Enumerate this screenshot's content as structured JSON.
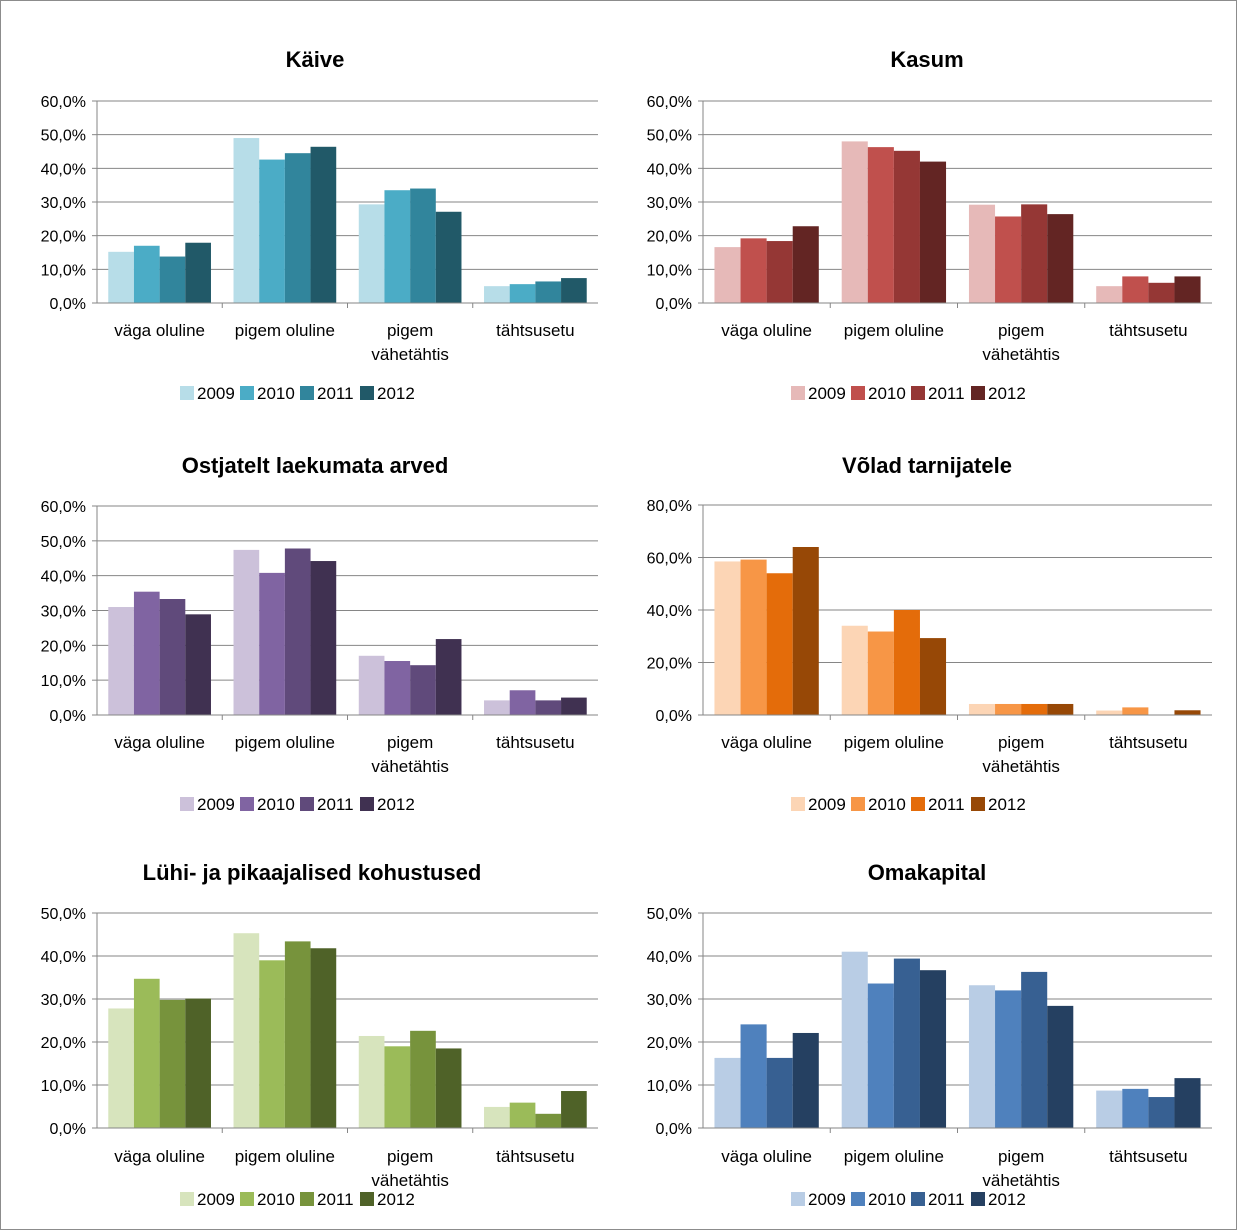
{
  "chart_data": [
    {
      "type": "bar",
      "title": "Käive",
      "categories": [
        [
          "väga oluline"
        ],
        [
          "pigem oluline"
        ],
        [
          "pigem",
          "vähetähtis"
        ],
        [
          "tähtsusetu"
        ]
      ],
      "ylim": [
        0,
        60
      ],
      "yticks": [
        "0,0%",
        "10,0%",
        "20,0%",
        "30,0%",
        "40,0%",
        "50,0%",
        "60,0%"
      ],
      "grid": true,
      "legend": "bottom",
      "series": [
        {
          "name": "2009",
          "color": "#b7dde8",
          "values": [
            15.2,
            49.0,
            29.3,
            5.0
          ]
        },
        {
          "name": "2010",
          "color": "#4bacc6",
          "values": [
            17.0,
            42.6,
            33.5,
            5.6
          ]
        },
        {
          "name": "2011",
          "color": "#31859c",
          "values": [
            13.8,
            44.5,
            34.0,
            6.4
          ]
        },
        {
          "name": "2012",
          "color": "#215968",
          "values": [
            17.9,
            46.4,
            27.1,
            7.4
          ]
        }
      ]
    },
    {
      "type": "bar",
      "title": "Kasum",
      "categories": [
        [
          "väga oluline"
        ],
        [
          "pigem oluline"
        ],
        [
          "pigem",
          "vähetähtis"
        ],
        [
          "tähtsusetu"
        ]
      ],
      "ylim": [
        0,
        60
      ],
      "yticks": [
        "0,0%",
        "10,0%",
        "20,0%",
        "30,0%",
        "40,0%",
        "50,0%",
        "60,0%"
      ],
      "grid": true,
      "legend": "bottom",
      "series": [
        {
          "name": "2009",
          "color": "#e6b9b8",
          "values": [
            16.6,
            48.0,
            29.2,
            5.0
          ]
        },
        {
          "name": "2010",
          "color": "#c0504d",
          "values": [
            19.2,
            46.3,
            25.7,
            7.9
          ]
        },
        {
          "name": "2011",
          "color": "#953735",
          "values": [
            18.4,
            45.2,
            29.3,
            6.0
          ]
        },
        {
          "name": "2012",
          "color": "#632523",
          "values": [
            22.8,
            42.0,
            26.4,
            7.9
          ]
        }
      ]
    },
    {
      "type": "bar",
      "title": "Ostjatelt laekumata arved",
      "categories": [
        [
          "väga oluline"
        ],
        [
          "pigem oluline"
        ],
        [
          "pigem",
          "vähetähtis"
        ],
        [
          "tähtsusetu"
        ]
      ],
      "ylim": [
        0,
        60
      ],
      "yticks": [
        "0,0%",
        "10,0%",
        "20,0%",
        "30,0%",
        "40,0%",
        "50,0%",
        "60,0%"
      ],
      "grid": true,
      "legend": "bottom",
      "series": [
        {
          "name": "2009",
          "color": "#ccc1da",
          "values": [
            31.0,
            47.4,
            17.0,
            4.2
          ]
        },
        {
          "name": "2010",
          "color": "#8064a2",
          "values": [
            35.4,
            40.8,
            15.5,
            7.1
          ]
        },
        {
          "name": "2011",
          "color": "#604a7b",
          "values": [
            33.3,
            47.8,
            14.3,
            4.2
          ]
        },
        {
          "name": "2012",
          "color": "#403151",
          "values": [
            28.9,
            44.2,
            21.8,
            5.0
          ]
        }
      ]
    },
    {
      "type": "bar",
      "title": "Võlad tarnijatele",
      "categories": [
        [
          "väga oluline"
        ],
        [
          "pigem oluline"
        ],
        [
          "pigem",
          "vähetähtis"
        ],
        [
          "tähtsusetu"
        ]
      ],
      "ylim": [
        0,
        80
      ],
      "yticks": [
        "0,0%",
        "20,0%",
        "40,0%",
        "60,0%",
        "80,0%"
      ],
      "grid": true,
      "legend": "bottom",
      "series": [
        {
          "name": "2009",
          "color": "#fcd5b5",
          "values": [
            58.5,
            34.0,
            4.2,
            1.7
          ]
        },
        {
          "name": "2010",
          "color": "#f79646",
          "values": [
            59.2,
            31.8,
            4.2,
            2.9
          ]
        },
        {
          "name": "2011",
          "color": "#e46c0a",
          "values": [
            54.0,
            40.0,
            4.2,
            0
          ]
        },
        {
          "name": "2012",
          "color": "#974806",
          "values": [
            64.0,
            29.3,
            4.2,
            1.8
          ]
        }
      ]
    },
    {
      "type": "bar",
      "title": "Lühi- ja pikaajalised kohustused",
      "categories": [
        [
          "väga oluline"
        ],
        [
          "pigem oluline"
        ],
        [
          "pigem",
          "vähetähtis"
        ],
        [
          "tähtsusetu"
        ]
      ],
      "ylim": [
        0,
        50
      ],
      "yticks": [
        "0,0%",
        "10,0%",
        "20,0%",
        "30,0%",
        "40,0%",
        "50,0%"
      ],
      "grid": true,
      "legend": "bottom",
      "series": [
        {
          "name": "2009",
          "color": "#d7e4bd",
          "values": [
            27.8,
            45.3,
            21.4,
            4.9
          ]
        },
        {
          "name": "2010",
          "color": "#9bbb59",
          "values": [
            34.7,
            39.0,
            19.0,
            5.9
          ]
        },
        {
          "name": "2011",
          "color": "#77933c",
          "values": [
            29.8,
            43.4,
            22.6,
            3.3
          ]
        },
        {
          "name": "2012",
          "color": "#4f6228",
          "values": [
            30.1,
            41.8,
            18.5,
            8.6
          ]
        }
      ]
    },
    {
      "type": "bar",
      "title": "Omakapital",
      "categories": [
        [
          "väga oluline"
        ],
        [
          "pigem oluline"
        ],
        [
          "pigem",
          "vähetähtis"
        ],
        [
          "tähtsusetu"
        ]
      ],
      "ylim": [
        0,
        50
      ],
      "yticks": [
        "0,0%",
        "10,0%",
        "20,0%",
        "30,0%",
        "40,0%",
        "50,0%"
      ],
      "grid": true,
      "legend": "bottom",
      "series": [
        {
          "name": "2009",
          "color": "#b9cde5",
          "values": [
            16.3,
            41.0,
            33.2,
            8.7
          ]
        },
        {
          "name": "2010",
          "color": "#4f81bd",
          "values": [
            24.1,
            33.6,
            32.0,
            9.1
          ]
        },
        {
          "name": "2011",
          "color": "#376092",
          "values": [
            16.3,
            39.4,
            36.3,
            7.2
          ]
        },
        {
          "name": "2012",
          "color": "#254061",
          "values": [
            22.1,
            36.7,
            28.4,
            11.6
          ]
        }
      ]
    }
  ]
}
